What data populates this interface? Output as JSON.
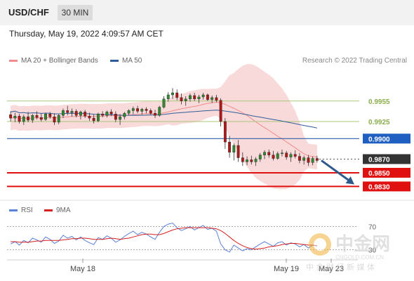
{
  "header": {
    "symbol": "USD/CHF",
    "timeframe": "30 MIN"
  },
  "datetime": "Thursday, May 19, 2022 4:09:57 AM CET",
  "legend": {
    "bb": {
      "label": "MA 20 + Bollinger Bands",
      "color": "#f08c8c"
    },
    "ma50": {
      "label": "MA 50",
      "color": "#2f5d9a"
    },
    "rsi": {
      "label": "RSI",
      "color": "#5b82d6"
    },
    "rsi_ma": {
      "label": "9MA",
      "color": "#d62020"
    }
  },
  "research": "Research © 2022 Trading Central",
  "watermark": {
    "logo_text": "中金网",
    "sub": "CNGOLD.COM.CN",
    "tag": "中 金 财 经 新 媒 体"
  },
  "chart_data": {
    "type": "candlestick",
    "symbol": "USD/CHF",
    "timeframe": "30 MIN",
    "xaxis": {
      "ticks": [
        "May 18",
        "May 19",
        "May 23"
      ]
    },
    "ylim": [
      0.9815,
      1.0
    ],
    "levels": [
      {
        "value": 0.9955,
        "label": "0.9955",
        "style": "thin",
        "color": "#a8c87a",
        "text_color": "#8aae4e",
        "bg": ""
      },
      {
        "value": 0.9925,
        "label": "0.9925",
        "style": "thin",
        "color": "#a8c87a",
        "text_color": "#8aae4e",
        "bg": ""
      },
      {
        "value": 0.99,
        "label": "0.9900",
        "style": "solid",
        "color": "#2e5fa8",
        "text_color": "#ffffff",
        "bg": "#1f5fc2"
      },
      {
        "value": 0.987,
        "label": "0.9870",
        "style": "dotted",
        "color": "#555555",
        "text_color": "#ffffff",
        "bg": "#333333"
      },
      {
        "value": 0.985,
        "label": "0.9850",
        "style": "thick",
        "color": "#e01010",
        "text_color": "#ffffff",
        "bg": "#e01010"
      },
      {
        "value": 0.983,
        "label": "0.9830",
        "style": "thick",
        "color": "#e01010",
        "text_color": "#ffffff",
        "bg": "#e01010"
      }
    ],
    "forecast_arrow": {
      "from": 0.9868,
      "to": 0.9833,
      "color": "#2d5a8a"
    },
    "candles": [
      [
        0.9935,
        0.994,
        0.9925,
        0.993
      ],
      [
        0.993,
        0.9938,
        0.9924,
        0.9933
      ],
      [
        0.9933,
        0.9936,
        0.9922,
        0.9925
      ],
      [
        0.9925,
        0.9935,
        0.992,
        0.9932
      ],
      [
        0.9932,
        0.9939,
        0.9924,
        0.9927
      ],
      [
        0.9927,
        0.9936,
        0.9923,
        0.9934
      ],
      [
        0.9934,
        0.994,
        0.9928,
        0.9931
      ],
      [
        0.9931,
        0.9937,
        0.9925,
        0.9928
      ],
      [
        0.9928,
        0.9938,
        0.9926,
        0.9936
      ],
      [
        0.9936,
        0.9939,
        0.9929,
        0.9932
      ],
      [
        0.9932,
        0.9937,
        0.992,
        0.9924
      ],
      [
        0.9924,
        0.9936,
        0.9921,
        0.9934
      ],
      [
        0.9934,
        0.9944,
        0.993,
        0.9941
      ],
      [
        0.9941,
        0.9948,
        0.9934,
        0.9938
      ],
      [
        0.9938,
        0.9944,
        0.9932,
        0.994
      ],
      [
        0.994,
        0.9943,
        0.9931,
        0.9934
      ],
      [
        0.9934,
        0.9941,
        0.9928,
        0.9939
      ],
      [
        0.9939,
        0.9942,
        0.993,
        0.9933
      ],
      [
        0.9933,
        0.9938,
        0.9926,
        0.993
      ],
      [
        0.993,
        0.9935,
        0.9922,
        0.9926
      ],
      [
        0.9926,
        0.9938,
        0.9924,
        0.9936
      ],
      [
        0.9936,
        0.994,
        0.9931,
        0.9934
      ],
      [
        0.9934,
        0.9941,
        0.9931,
        0.9939
      ],
      [
        0.9939,
        0.9943,
        0.9933,
        0.9936
      ],
      [
        0.9936,
        0.994,
        0.9924,
        0.9928
      ],
      [
        0.9928,
        0.9936,
        0.992,
        0.9932
      ],
      [
        0.9932,
        0.9939,
        0.9928,
        0.9937
      ],
      [
        0.9937,
        0.9943,
        0.9934,
        0.9941
      ],
      [
        0.9941,
        0.9947,
        0.9936,
        0.9944
      ],
      [
        0.9944,
        0.9948,
        0.9937,
        0.994
      ],
      [
        0.994,
        0.9945,
        0.9935,
        0.9943
      ],
      [
        0.9943,
        0.9946,
        0.9937,
        0.9941
      ],
      [
        0.9941,
        0.9944,
        0.9935,
        0.9937
      ],
      [
        0.9937,
        0.9942,
        0.993,
        0.9934
      ],
      [
        0.9934,
        0.9948,
        0.9932,
        0.9946
      ],
      [
        0.9946,
        0.9962,
        0.9944,
        0.9958
      ],
      [
        0.9958,
        0.9968,
        0.9954,
        0.9964
      ],
      [
        0.9964,
        0.9974,
        0.9958,
        0.9967
      ],
      [
        0.9967,
        0.9972,
        0.9956,
        0.996
      ],
      [
        0.996,
        0.9966,
        0.995,
        0.9955
      ],
      [
        0.9955,
        0.9962,
        0.9948,
        0.9958
      ],
      [
        0.9958,
        0.9966,
        0.9954,
        0.9963
      ],
      [
        0.9963,
        0.9967,
        0.9955,
        0.9958
      ],
      [
        0.9958,
        0.9964,
        0.9952,
        0.9961
      ],
      [
        0.9961,
        0.9967,
        0.9957,
        0.9964
      ],
      [
        0.9964,
        0.9966,
        0.9955,
        0.9957
      ],
      [
        0.9957,
        0.9963,
        0.9952,
        0.996
      ],
      [
        0.996,
        0.9964,
        0.9953,
        0.9956
      ],
      [
        0.9956,
        0.9959,
        0.9918,
        0.9925
      ],
      [
        0.9925,
        0.993,
        0.9885,
        0.9895
      ],
      [
        0.9895,
        0.9904,
        0.9872,
        0.988
      ],
      [
        0.988,
        0.9893,
        0.9868,
        0.989
      ],
      [
        0.989,
        0.9898,
        0.9866,
        0.9872
      ],
      [
        0.9872,
        0.988,
        0.986,
        0.9866
      ],
      [
        0.9866,
        0.9874,
        0.9861,
        0.9869
      ],
      [
        0.9869,
        0.9875,
        0.9862,
        0.9866
      ],
      [
        0.9866,
        0.9873,
        0.986,
        0.987
      ],
      [
        0.987,
        0.9879,
        0.9866,
        0.9876
      ],
      [
        0.9876,
        0.9883,
        0.987,
        0.988
      ],
      [
        0.988,
        0.9884,
        0.9872,
        0.9876
      ],
      [
        0.9876,
        0.9882,
        0.9868,
        0.9871
      ],
      [
        0.9871,
        0.9881,
        0.9869,
        0.9878
      ],
      [
        0.9878,
        0.9884,
        0.9874,
        0.9879
      ],
      [
        0.9879,
        0.9882,
        0.9869,
        0.9873
      ],
      [
        0.9873,
        0.988,
        0.9866,
        0.9877
      ],
      [
        0.9877,
        0.9883,
        0.9871,
        0.9874
      ],
      [
        0.9874,
        0.9879,
        0.9864,
        0.9868
      ],
      [
        0.9868,
        0.9875,
        0.9862,
        0.9872
      ],
      [
        0.9872,
        0.9876,
        0.986,
        0.9865
      ],
      [
        0.9865,
        0.9874,
        0.9861,
        0.9871
      ],
      [
        0.9871,
        0.9875,
        0.9865,
        0.9868
      ]
    ],
    "rsi": {
      "levels": [
        70,
        30
      ],
      "ylim": [
        15,
        85
      ],
      "rsi_values": [
        40,
        44,
        38,
        46,
        42,
        50,
        47,
        43,
        52,
        48,
        41,
        45,
        55,
        50,
        53,
        47,
        52,
        46,
        42,
        39,
        51,
        48,
        54,
        50,
        43,
        47,
        53,
        58,
        62,
        56,
        60,
        57,
        52,
        48,
        60,
        70,
        74,
        76,
        68,
        63,
        66,
        70,
        64,
        68,
        72,
        65,
        67,
        62,
        40,
        30,
        26,
        38,
        33,
        28,
        32,
        30,
        35,
        40,
        44,
        40,
        36,
        42,
        44,
        38,
        42,
        40,
        35,
        39,
        33,
        38,
        36
      ],
      "ma_values": [
        44,
        44,
        43,
        43,
        43,
        44,
        45,
        45,
        46,
        46,
        46,
        46,
        47,
        48,
        49,
        49,
        50,
        50,
        49,
        48,
        48,
        48,
        49,
        50,
        49,
        48,
        49,
        50,
        52,
        54,
        56,
        57,
        57,
        56,
        56,
        58,
        61,
        64,
        66,
        67,
        68,
        68,
        68,
        68,
        68,
        68,
        67,
        66,
        63,
        58,
        52,
        46,
        41,
        37,
        34,
        32,
        31,
        32,
        33,
        35,
        36,
        37,
        39,
        40,
        41,
        41,
        40,
        39,
        38,
        38,
        37
      ]
    }
  }
}
